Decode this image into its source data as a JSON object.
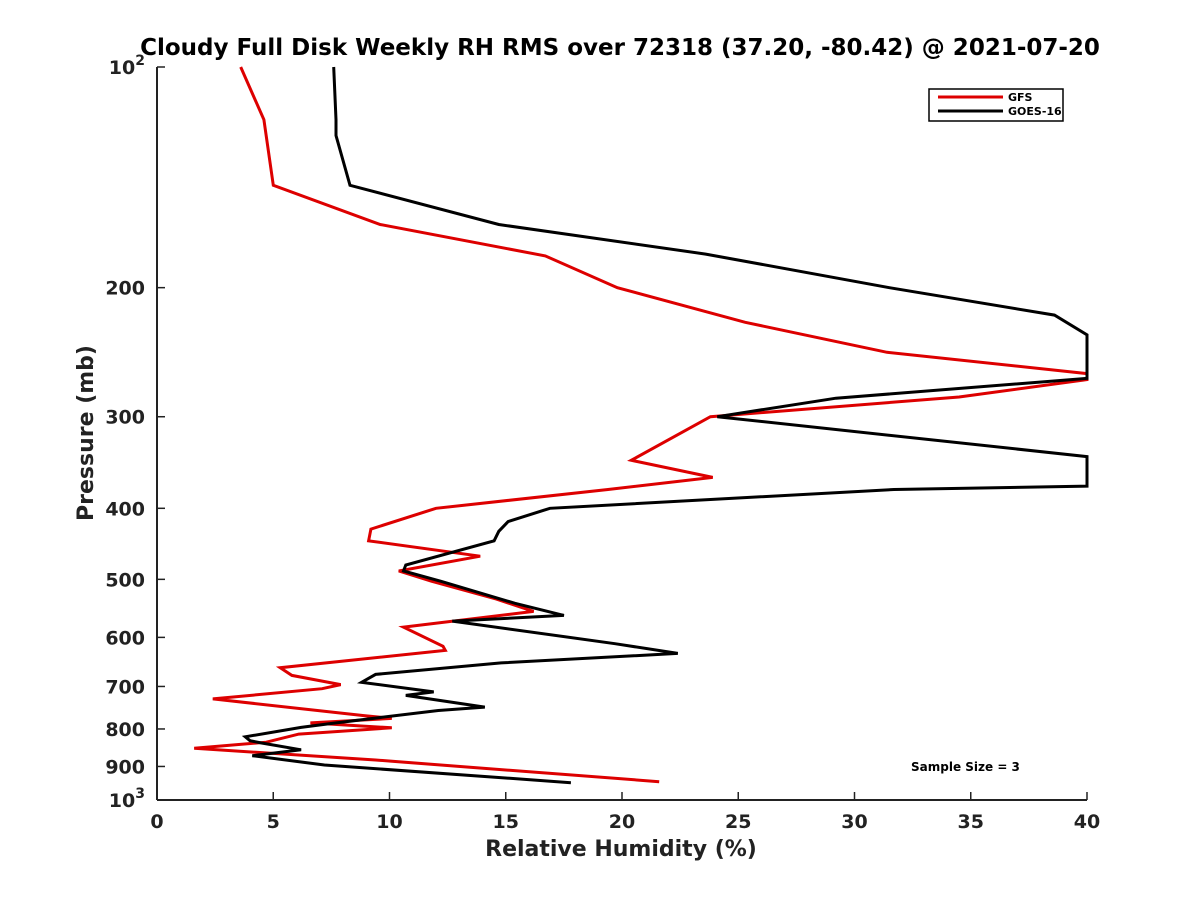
{
  "chart_data": {
    "type": "line",
    "title": "Cloudy Full Disk Weekly RH RMS over 72318 (37.20, -80.42) @ 2021-07-20",
    "xlabel": "Relative Humidity (%)",
    "ylabel": "Pressure (mb)",
    "xlim": [
      0,
      40
    ],
    "ylim": [
      100,
      1000
    ],
    "yscale": "log",
    "y_reversed": true,
    "grid": false,
    "x_ticks": [
      0,
      5,
      10,
      15,
      20,
      25,
      30,
      35,
      40
    ],
    "x_tick_labels": [
      "0",
      "5",
      "10",
      "15",
      "20",
      "25",
      "30",
      "35",
      "40"
    ],
    "y_ticks": [
      100,
      200,
      300,
      400,
      500,
      600,
      700,
      800,
      900,
      1000
    ],
    "y_tick_labels": [
      {
        "base": "10",
        "exp": "2"
      },
      {
        "text": "200"
      },
      {
        "text": "300"
      },
      {
        "text": "400"
      },
      {
        "text": "500"
      },
      {
        "text": "600"
      },
      {
        "text": "700"
      },
      {
        "text": "800"
      },
      {
        "text": "900"
      },
      {
        "base": "10",
        "exp": "3"
      }
    ],
    "legend_position": "top-right",
    "annotation": "Sample Size = 3",
    "series": [
      {
        "name": "GFS",
        "color": "#dd0000",
        "x": [
          3.6,
          4.6,
          5.0,
          9.6,
          16.7,
          19.8,
          25.3,
          31.4,
          40.0,
          40.0,
          34.5,
          23.8,
          20.4,
          23.9,
          19.4,
          12.0,
          9.2,
          9.1,
          13.9,
          10.4,
          11.8,
          14.6,
          16.2,
          10.6,
          12.3,
          12.4,
          5.3,
          5.8,
          7.9,
          7.1,
          2.4,
          8.9,
          10.1,
          6.6,
          10.1,
          6.1,
          4.7,
          1.6,
          9.4,
          21.6
        ],
        "y": [
          100,
          118,
          145,
          164,
          181,
          200,
          223,
          245,
          262,
          267,
          282,
          300,
          344,
          363,
          377,
          400,
          427,
          443,
          465,
          487,
          503,
          532,
          553,
          581,
          617,
          625,
          660,
          676,
          696,
          705,
          728,
          767,
          774,
          785,
          797,
          813,
          834,
          850,
          882,
          944
        ]
      },
      {
        "name": "GOES-16",
        "color": "#000000",
        "x": [
          7.6,
          7.7,
          7.7,
          8.3,
          14.7,
          23.6,
          31.5,
          38.6,
          40.0,
          40.0,
          29.2,
          24.1,
          40.0,
          40.0,
          31.7,
          16.9,
          15.1,
          14.7,
          14.5,
          10.7,
          10.6,
          12.2,
          15.4,
          17.5,
          12.7,
          19.7,
          22.4,
          14.8,
          9.4,
          8.8,
          11.9,
          10.7,
          14.1,
          12.1,
          7.4,
          6.2,
          3.8,
          4.0,
          4.5,
          6.2,
          4.1,
          7.2,
          17.8
        ],
        "y": [
          100,
          118,
          124,
          145,
          164,
          180,
          200,
          218,
          232,
          266,
          283,
          300,
          340,
          373,
          377,
          400,
          417,
          430,
          443,
          478,
          487,
          503,
          539,
          560,
          570,
          612,
          631,
          650,
          674,
          691,
          712,
          720,
          747,
          755,
          787,
          796,
          820,
          830,
          836,
          854,
          870,
          896,
          947
        ]
      }
    ]
  }
}
